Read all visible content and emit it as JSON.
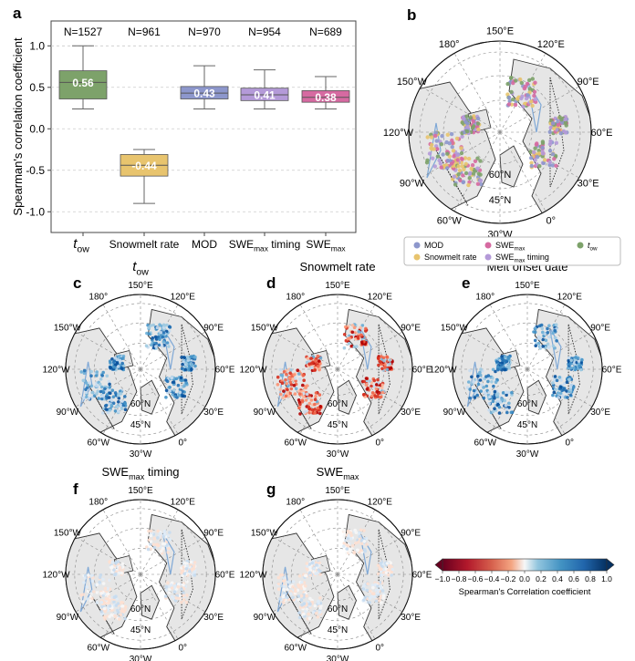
{
  "panel_letters": {
    "a": "a",
    "b": "b",
    "c": "c",
    "d": "d",
    "e": "e",
    "f": "f",
    "g": "g"
  },
  "colors": {
    "tow": "#7da26a",
    "snowmelt": "#e8c46e",
    "mod": "#8d97cc",
    "swe_timing": "#b49ad8",
    "swe_max": "#d66aa1",
    "land": "#e6e6e6",
    "coast": "#333333"
  },
  "chart_data": [
    {
      "type": "box",
      "ylabel": "Spearman's correlation coefficient",
      "ylim": [
        -1.25,
        1.3
      ],
      "yticks": [
        "1.0",
        "0.5",
        "0.0",
        "-0.5",
        "-1.0"
      ],
      "ytick_values": [
        1.0,
        0.5,
        0.0,
        -0.5,
        -1.0
      ],
      "grid": true,
      "categories": [
        {
          "base": "t",
          "sub": "ow",
          "sup": "",
          "tail": ""
        },
        {
          "base": "Snowmelt rate",
          "sub": "",
          "sup": "",
          "tail": ""
        },
        {
          "base": "MOD",
          "sub": "",
          "sup": "",
          "tail": ""
        },
        {
          "base": "SWE",
          "sub": "max",
          "sup": "",
          "tail": " timing"
        },
        {
          "base": "SWE",
          "sub": "max",
          "sup": "",
          "tail": ""
        }
      ],
      "counts": [
        "N=1527",
        "N=961",
        "N=970",
        "N=954",
        "N=689"
      ],
      "boxes": [
        {
          "whislo": 0.24,
          "q1": 0.36,
          "med": 0.56,
          "q3": 0.7,
          "whishi": 1.0,
          "label": "0.56",
          "color_key": "tow"
        },
        {
          "whislo": -0.9,
          "q1": -0.57,
          "med": -0.44,
          "q3": -0.31,
          "whishi": -0.25,
          "label": "-0.44",
          "color_key": "snowmelt"
        },
        {
          "whislo": 0.24,
          "q1": 0.36,
          "med": 0.43,
          "q3": 0.51,
          "whishi": 0.76,
          "label": "0.43",
          "color_key": "mod"
        },
        {
          "whislo": 0.24,
          "q1": 0.34,
          "med": 0.41,
          "q3": 0.49,
          "whishi": 0.71,
          "label": "0.41",
          "color_key": "swe_timing"
        },
        {
          "whislo": 0.24,
          "q1": 0.32,
          "med": 0.38,
          "q3": 0.46,
          "whishi": 0.63,
          "label": "0.38",
          "color_key": "swe_max"
        }
      ]
    },
    {
      "type": "colorbar",
      "label": "Spearman's Correlation coefficient",
      "ticks": [
        "−1.0",
        "−0.8",
        "−0.6",
        "−0.4",
        "−0.2",
        "0.0",
        "0.2",
        "0.4",
        "0.6",
        "0.8",
        "1.0"
      ],
      "range": [
        -1.0,
        1.0
      ]
    }
  ],
  "maps": {
    "b": {
      "title": "",
      "sub": ""
    },
    "c": {
      "title": "t",
      "sub": "ow",
      "tail": ""
    },
    "d": {
      "title": "Snowmelt rate",
      "sub": "",
      "tail": ""
    },
    "e": {
      "title": "Melt onset date",
      "sub": "",
      "tail": ""
    },
    "f": {
      "title": "SWE",
      "sub": "max",
      "tail": " timing"
    },
    "g": {
      "title": "SWE",
      "sub": "max",
      "tail": ""
    },
    "lon_labels": [
      "150°E",
      "180°",
      "120°E",
      "150°W",
      "90°E",
      "120°W",
      "60°E",
      "90°W",
      "30°E",
      "60°W",
      "0°",
      "30°W"
    ],
    "lat_labels": [
      "60°N",
      "45°N"
    ]
  },
  "legend": {
    "items": [
      {
        "base": "MOD",
        "sub": "",
        "tail": "",
        "color_key": "mod"
      },
      {
        "base": "SWE",
        "sub": "max",
        "tail": "",
        "color_key": "swe_max"
      },
      {
        "base": "t",
        "sub": "ow",
        "tail": "",
        "color_key": "tow"
      },
      {
        "base": "Snowmelt rate",
        "sub": "",
        "tail": "",
        "color_key": "snowmelt"
      },
      {
        "base": "SWE",
        "sub": "max",
        "tail": " timing",
        "color_key": "swe_timing"
      }
    ]
  }
}
